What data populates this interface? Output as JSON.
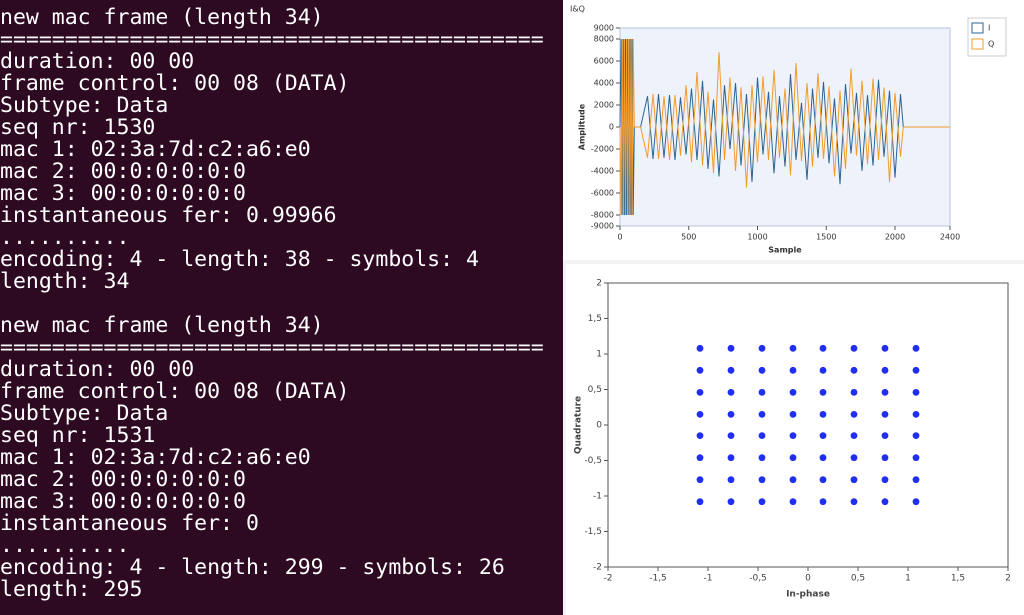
{
  "terminal": {
    "blocks": [
      {
        "lines": [
          "new mac frame  (length 34)",
          "==========================================",
          "duration: 00 00",
          "frame control: 00 08 (DATA)",
          "Subtype: Data",
          "seq nr: 1530",
          "mac 1: 02:3a:7d:c2:a6:e0",
          "mac 2: 00:0:0:0:0:0",
          "mac 3: 00:0:0:0:0:0",
          "instantaneous fer: 0.99966",
          "..........",
          "encoding: 4 - length: 38 - symbols: 4",
          "length: 34"
        ]
      },
      {
        "lines": [
          "new mac frame  (length 34)",
          "==========================================",
          "duration: 00 00",
          "frame control: 00 08 (DATA)",
          "Subtype: Data",
          "seq nr: 1531",
          "mac 1: 02:3a:7d:c2:a6:e0",
          "mac 2: 00:0:0:0:0:0",
          "mac 3: 00:0:0:0:0:0",
          "instantaneous fer: 0",
          "..........",
          "encoding: 4 - length: 299 - symbols: 26",
          "length: 295"
        ]
      }
    ]
  },
  "chart_data": [
    {
      "type": "line",
      "title": "I&Q",
      "x_label": "Sample",
      "y_label": "Amplitude",
      "x": [
        0,
        8,
        16,
        24,
        32,
        40,
        48,
        56,
        64,
        72,
        80,
        88,
        96,
        104,
        150,
        200,
        240,
        280,
        320,
        360,
        400,
        440,
        480,
        520,
        560,
        600,
        640,
        680,
        720,
        760,
        800,
        840,
        880,
        920,
        960,
        1000,
        1040,
        1080,
        1120,
        1160,
        1200,
        1240,
        1280,
        1320,
        1360,
        1400,
        1440,
        1480,
        1520,
        1560,
        1600,
        1640,
        1680,
        1720,
        1760,
        1800,
        1840,
        1880,
        1920,
        1960,
        2000,
        2040,
        2060,
        2400
      ],
      "series": [
        {
          "name": "I",
          "color": "#2a6496",
          "values": [
            0,
            8000,
            -8000,
            8000,
            -8000,
            8000,
            -8000,
            8000,
            -8000,
            8000,
            -8000,
            8000,
            -8000,
            0,
            0,
            2800,
            -2900,
            3000,
            -2800,
            2900,
            -3000,
            2700,
            -2500,
            3500,
            -3000,
            4200,
            -3800,
            2500,
            -4500,
            3800,
            -2000,
            4000,
            -3500,
            3000,
            -5000,
            4500,
            -2500,
            3200,
            -4200,
            2800,
            -3600,
            4800,
            -3000,
            2200,
            -4800,
            3500,
            -2800,
            4100,
            -3300,
            2600,
            -5200,
            3900,
            -2400,
            3100,
            -4000,
            2900,
            -3500,
            4300,
            -2700,
            3300,
            -4600,
            3000,
            0,
            0
          ]
        },
        {
          "name": "Q",
          "color": "#f39c2a",
          "values": [
            0,
            -8000,
            8000,
            -8000,
            8000,
            -8000,
            8000,
            -8000,
            8000,
            -8000,
            8000,
            -8000,
            8000,
            0,
            0,
            -2800,
            3000,
            -2900,
            2800,
            -3000,
            2900,
            -2600,
            3800,
            -3200,
            5000,
            -3500,
            3200,
            -4200,
            6800,
            -3000,
            4500,
            -4000,
            3600,
            -5500,
            3800,
            -3200,
            4600,
            -3000,
            5200,
            -2800,
            3500,
            -4400,
            5800,
            -3100,
            4000,
            -3600,
            4900,
            -2900,
            3700,
            -4500,
            3300,
            -3800,
            5300,
            -2600,
            4200,
            -3400,
            4400,
            -3000,
            3600,
            -5000,
            3100,
            -2700,
            0,
            0
          ]
        }
      ],
      "xlim": [
        0,
        2400
      ],
      "xticks": [
        0,
        500,
        1000,
        1500,
        2000,
        2400
      ],
      "ylim": [
        -9000,
        9000
      ],
      "yticks": [
        -9000,
        -8000,
        -6000,
        -4000,
        -2000,
        0,
        2000,
        4000,
        6000,
        8000,
        9000
      ]
    },
    {
      "type": "scatter",
      "x_label": "In-phase",
      "y_label": "Quadrature",
      "color": "#1f2ef0",
      "x": [
        -1.08,
        -0.77,
        -0.46,
        -0.15,
        0.15,
        0.46,
        0.77,
        1.08,
        -1.08,
        -0.77,
        -0.46,
        -0.15,
        0.15,
        0.46,
        0.77,
        1.08,
        -1.08,
        -0.77,
        -0.46,
        -0.15,
        0.15,
        0.46,
        0.77,
        1.08,
        -1.08,
        -0.77,
        -0.46,
        -0.15,
        0.15,
        0.46,
        0.77,
        1.08,
        -1.08,
        -0.77,
        -0.46,
        -0.15,
        0.15,
        0.46,
        0.77,
        1.08,
        -1.08,
        -0.77,
        -0.46,
        -0.15,
        0.15,
        0.46,
        0.77,
        1.08,
        -1.08,
        -0.77,
        -0.46,
        -0.15,
        0.15,
        0.46,
        0.77,
        1.08,
        -1.08,
        -0.77,
        -0.46,
        -0.15,
        0.15,
        0.46,
        0.77,
        1.08
      ],
      "y": [
        1.08,
        1.08,
        1.08,
        1.08,
        1.08,
        1.08,
        1.08,
        1.08,
        0.77,
        0.77,
        0.77,
        0.77,
        0.77,
        0.77,
        0.77,
        0.77,
        0.46,
        0.46,
        0.46,
        0.46,
        0.46,
        0.46,
        0.46,
        0.46,
        0.15,
        0.15,
        0.15,
        0.15,
        0.15,
        0.15,
        0.15,
        0.15,
        -0.15,
        -0.15,
        -0.15,
        -0.15,
        -0.15,
        -0.15,
        -0.15,
        -0.15,
        -0.46,
        -0.46,
        -0.46,
        -0.46,
        -0.46,
        -0.46,
        -0.46,
        -0.46,
        -0.77,
        -0.77,
        -0.77,
        -0.77,
        -0.77,
        -0.77,
        -0.77,
        -0.77,
        -1.08,
        -1.08,
        -1.08,
        -1.08,
        -1.08,
        -1.08,
        -1.08,
        -1.08
      ],
      "xlim": [
        -2,
        2
      ],
      "xticks": [
        -2,
        {
          "value": -1.5,
          "label": "-1,5"
        },
        -1,
        {
          "value": -0.5,
          "label": "-0,5"
        },
        0,
        {
          "value": 0.5,
          "label": "0,5"
        },
        1,
        {
          "value": 1.5,
          "label": "1,5"
        },
        2
      ],
      "ylim": [
        -2,
        2
      ],
      "yticks": [
        -2,
        {
          "value": -1.5,
          "label": "-1,5"
        },
        -1,
        {
          "value": -0.5,
          "label": "-0,5"
        },
        0,
        {
          "value": 0.5,
          "label": "0,5"
        },
        1,
        {
          "value": 1.5,
          "label": "1,5"
        },
        2
      ]
    }
  ]
}
